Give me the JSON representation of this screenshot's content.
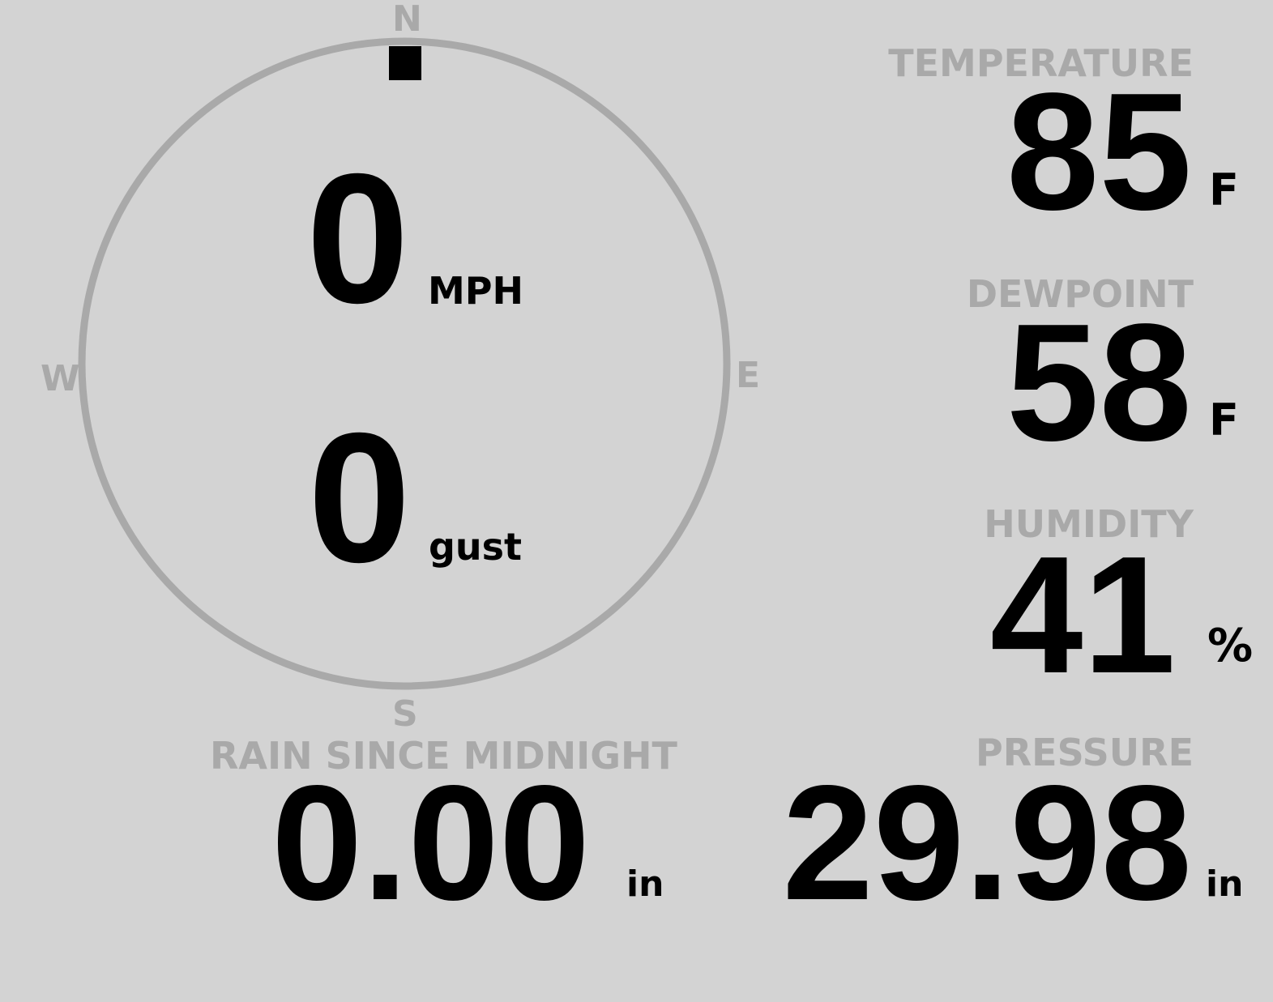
{
  "colors": {
    "background": "#d3d3d3",
    "label": "#a9a9a9",
    "value": "#000000"
  },
  "compass": {
    "north": "N",
    "east": "E",
    "south": "S",
    "west": "W",
    "wind_direction_deg": 0
  },
  "wind": {
    "speed": "0",
    "speed_unit": "MPH",
    "gust": "0",
    "gust_unit": "gust"
  },
  "rain": {
    "label": "RAIN SINCE MIDNIGHT",
    "value": "0.00",
    "unit": "in"
  },
  "temperature": {
    "label": "TEMPERATURE",
    "value": "85",
    "unit": "F"
  },
  "dewpoint": {
    "label": "DEWPOINT",
    "value": "58",
    "unit": "F"
  },
  "humidity": {
    "label": "HUMIDITY",
    "value": "41",
    "unit": "%"
  },
  "pressure": {
    "label": "PRESSURE",
    "value": "29.98",
    "unit": "in"
  }
}
